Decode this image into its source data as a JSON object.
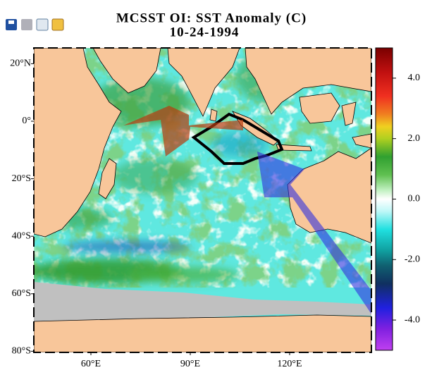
{
  "title": "MCSST OI:  SST Anomaly (C)",
  "date": "10-24-1994",
  "lat_ticks": [
    {
      "value": 20,
      "label": "20°N"
    },
    {
      "value": 0,
      "label": "0°"
    },
    {
      "value": -20,
      "label": "20°S"
    },
    {
      "value": -40,
      "label": "40°S"
    },
    {
      "value": -60,
      "label": "60°S"
    },
    {
      "value": -80,
      "label": "80°S"
    }
  ],
  "lon_ticks": [
    {
      "value": 60,
      "label": "60°E"
    },
    {
      "value": 90,
      "label": "90°E"
    },
    {
      "value": 120,
      "label": "120°E"
    }
  ],
  "colorbar": {
    "range": [
      -5,
      5
    ],
    "ticks": [
      {
        "value": 4,
        "label": "4.0"
      },
      {
        "value": 2,
        "label": "2.0"
      },
      {
        "value": 0,
        "label": "0.0"
      },
      {
        "value": -2,
        "label": "-2.0"
      },
      {
        "value": -4,
        "label": "-4.0"
      }
    ]
  }
}
